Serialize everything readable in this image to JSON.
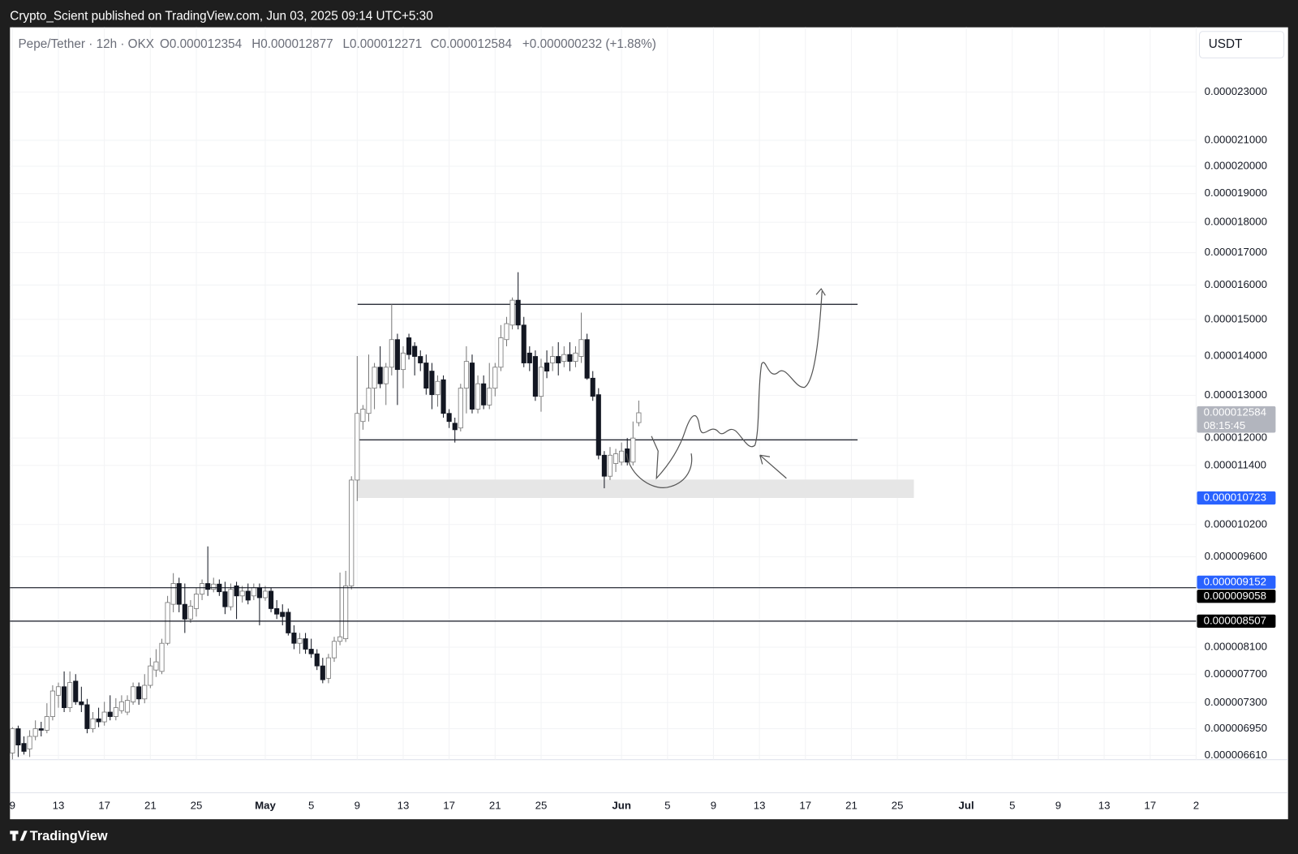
{
  "top_bar": {
    "text": "Crypto_Scient published on TradingView.com, Jun 03, 2025 09:14 UTC+5:30"
  },
  "footer": {
    "brand": "TradingView"
  },
  "currency_button": "USDT",
  "chart_data": {
    "type": "candlestick",
    "header": {
      "symbol": "Pepe/Tether · 12h · OKX",
      "open": "O0.000012354",
      "high": "H0.000012877",
      "low": "L0.000012271",
      "close": "C0.000012584",
      "change": "+0.000000232 (+1.88%)"
    },
    "log_scale": true,
    "grid": true,
    "up_color": "#ffffff",
    "down_color": "#131722",
    "ylim": [
      6.557e-06,
      2.597e-05
    ],
    "yticks": [
      {
        "value": 2.3e-05,
        "label": "0.000023000"
      },
      {
        "value": 2.1e-05,
        "label": "0.000021000"
      },
      {
        "value": 2e-05,
        "label": "0.000020000"
      },
      {
        "value": 1.9e-05,
        "label": "0.000019000"
      },
      {
        "value": 1.8e-05,
        "label": "0.000018000"
      },
      {
        "value": 1.7e-05,
        "label": "0.000017000"
      },
      {
        "value": 1.6e-05,
        "label": "0.000016000"
      },
      {
        "value": 1.5e-05,
        "label": "0.000015000"
      },
      {
        "value": 1.4e-05,
        "label": "0.000014000"
      },
      {
        "value": 1.3e-05,
        "label": "0.000013000"
      },
      {
        "value": 1.2e-05,
        "label": "0.000012000"
      },
      {
        "value": 1.14e-05,
        "label": "0.000011400"
      },
      {
        "value": 1.02e-05,
        "label": "0.000010200"
      },
      {
        "value": 9.6e-06,
        "label": "0.000009600"
      },
      {
        "value": 8.1e-06,
        "label": "0.000008100"
      },
      {
        "value": 7.7e-06,
        "label": "0.000007700"
      },
      {
        "value": 7.3e-06,
        "label": "0.000007300"
      },
      {
        "value": 6.95e-06,
        "label": "0.000006950"
      },
      {
        "value": 6.61e-06,
        "label": "0.000006610"
      }
    ],
    "xlim": [
      -0.43,
      206
    ],
    "xticks": [
      {
        "value": 0,
        "label": "9"
      },
      {
        "value": 8,
        "label": "13"
      },
      {
        "value": 16,
        "label": "17"
      },
      {
        "value": 24,
        "label": "21"
      },
      {
        "value": 32,
        "label": "25"
      },
      {
        "value": 44,
        "label": "May"
      },
      {
        "value": 52,
        "label": "5"
      },
      {
        "value": 60,
        "label": "9"
      },
      {
        "value": 68,
        "label": "13"
      },
      {
        "value": 76,
        "label": "17"
      },
      {
        "value": 84,
        "label": "21"
      },
      {
        "value": 92,
        "label": "25"
      },
      {
        "value": 106,
        "label": "Jun"
      },
      {
        "value": 114,
        "label": "5"
      },
      {
        "value": 122,
        "label": "9"
      },
      {
        "value": 130,
        "label": "13"
      },
      {
        "value": 138,
        "label": "17"
      },
      {
        "value": 146,
        "label": "21"
      },
      {
        "value": 154,
        "label": "25"
      },
      {
        "value": 166,
        "label": "Jul"
      },
      {
        "value": 174,
        "label": "5"
      },
      {
        "value": 182,
        "label": "9"
      },
      {
        "value": 190,
        "label": "13"
      },
      {
        "value": 198,
        "label": "17"
      },
      {
        "value": 206,
        "label": "2"
      }
    ],
    "open": [
      6.64e-06,
      6.95e-06,
      6.76e-06,
      6.69e-06,
      6.85e-06,
      6.95e-06,
      6.93e-06,
      7.11e-06,
      7.4e-06,
      7.52e-06,
      7.23e-06,
      7.6e-06,
      7.31e-06,
      7.27e-06,
      6.95e-06,
      7.08e-06,
      7.04e-06,
      7.17e-06,
      7.11e-06,
      7.19e-06,
      7.17e-06,
      7.31e-06,
      7.52e-06,
      7.35e-06,
      7.54e-06,
      7.76e-06,
      7.74e-06,
      8.16e-06,
      8.78e-06,
      9.13e-06,
      8.78e-06,
      8.54e-06,
      8.71e-06,
      8.95e-06,
      9.13e-06,
      9.03e-06,
      9.12e-06,
      8.99e-06,
      8.74e-06,
      9.09e-06,
      8.92e-06,
      9e-06,
      8.92e-06,
      9.06e-06,
      8.89e-06,
      9e-06,
      8.71e-06,
      8.65e-06,
      8.65e-06,
      8.32e-06,
      8.16e-06,
      8.23e-06,
      8.07e-06,
      8e-06,
      7.82e-06,
      7.64e-06,
      7.94e-06,
      8.19e-06,
      8.23e-06,
      9.09e-06,
      1.109e-05,
      1.238e-05,
      1.257e-05,
      1.318e-05,
      1.371e-05,
      1.329e-05,
      1.371e-05,
      1.444e-05,
      1.365e-05,
      1.449e-05,
      1.426e-05,
      1.399e-05,
      1.382e-05,
      1.361e-05,
      1.302e-05,
      1.339e-05,
      1.257e-05,
      1.234e-05,
      1.223e-05,
      1.318e-05,
      1.382e-05,
      1.267e-05,
      1.329e-05,
      1.277e-05,
      1.318e-05,
      1.371e-05,
      1.444e-05,
      1.484e-05,
      1.555e-05,
      1.484e-05,
      1.408e-05,
      1.399e-05,
      1.298e-05,
      1.382e-05,
      1.382e-05,
      1.399e-05,
      1.386e-05,
      1.404e-05,
      1.386e-05,
      1.399e-05,
      1.444e-05,
      1.343e-05,
      1.302e-05,
      1.162e-05,
      1.117e-05,
      1.144e-05,
      1.147e-05,
      1.176e-05,
      1.147e-05,
      1.2354e-05
    ],
    "high": [
      6.97e-06,
      6.99e-06,
      6.85e-06,
      6.93e-06,
      7.06e-06,
      7.04e-06,
      7.29e-06,
      7.54e-06,
      7.58e-06,
      7.74e-06,
      7.74e-06,
      7.7e-06,
      7.52e-06,
      7.35e-06,
      7.17e-06,
      7.23e-06,
      7.31e-06,
      7.4e-06,
      7.36e-06,
      7.4e-06,
      7.4e-06,
      7.58e-06,
      7.58e-06,
      7.7e-06,
      7.94e-06,
      8.07e-06,
      8.23e-06,
      8.92e-06,
      9.31e-06,
      9.23e-06,
      9.13e-06,
      8.85e-06,
      9.06e-06,
      9.2e-06,
      9.79e-06,
      9.23e-06,
      9.2e-06,
      9.16e-06,
      9.13e-06,
      9.16e-06,
      9.09e-06,
      9.13e-06,
      9.13e-06,
      9.13e-06,
      9.09e-06,
      9.06e-06,
      8.85e-06,
      8.78e-06,
      8.71e-06,
      8.44e-06,
      8.32e-06,
      8.32e-06,
      8.23e-06,
      8.07e-06,
      7.94e-06,
      8e-06,
      8.26e-06,
      9.32e-06,
      9.35e-06,
      1.117e-05,
      1.4e-05,
      1.277e-05,
      1.404e-05,
      1.382e-05,
      1.426e-05,
      1.382e-05,
      1.543e-05,
      1.46e-05,
      1.426e-05,
      1.46e-05,
      1.437e-05,
      1.415e-05,
      1.404e-05,
      1.382e-05,
      1.35e-05,
      1.35e-05,
      1.267e-05,
      1.247e-05,
      1.329e-05,
      1.426e-05,
      1.404e-05,
      1.35e-05,
      1.35e-05,
      1.382e-05,
      1.382e-05,
      1.484e-05,
      1.507e-05,
      1.563e-05,
      1.639e-05,
      1.507e-05,
      1.426e-05,
      1.415e-05,
      1.393e-05,
      1.415e-05,
      1.426e-05,
      1.437e-05,
      1.426e-05,
      1.437e-05,
      1.426e-05,
      1.519e-05,
      1.46e-05,
      1.361e-05,
      1.318e-05,
      1.171e-05,
      1.18e-05,
      1.176e-05,
      1.19e-05,
      1.2e-05,
      1.238e-05,
      1.2877e-05
    ],
    "low": [
      6.56e-06,
      6.59e-06,
      6.62e-06,
      6.59e-06,
      6.8e-06,
      6.85e-06,
      6.89e-06,
      7.06e-06,
      7.23e-06,
      7.17e-06,
      7.17e-06,
      7.27e-06,
      7.17e-06,
      6.89e-06,
      6.9e-06,
      6.97e-06,
      6.99e-06,
      7.06e-06,
      7.06e-06,
      7.15e-06,
      7.13e-06,
      7.27e-06,
      7.27e-06,
      7.29e-06,
      7.5e-06,
      7.66e-06,
      7.7e-06,
      8.13e-06,
      8.65e-06,
      8.65e-06,
      8.32e-06,
      8.48e-06,
      8.58e-06,
      8.85e-06,
      8.92e-06,
      8.98e-06,
      8.92e-06,
      8.62e-06,
      8.68e-06,
      8.54e-06,
      8.81e-06,
      8.78e-06,
      8.85e-06,
      8.44e-06,
      8.84e-06,
      8.65e-06,
      8.54e-06,
      8.44e-06,
      8.28e-06,
      8.07e-06,
      8e-06,
      8e-06,
      7.94e-06,
      7.76e-06,
      7.57e-06,
      7.57e-06,
      7.88e-06,
      8.13e-06,
      8.18e-06,
      9.03e-06,
      1.066e-05,
      1.219e-05,
      1.238e-05,
      1.267e-05,
      1.318e-05,
      1.277e-05,
      1.35e-05,
      1.277e-05,
      1.318e-05,
      1.391e-05,
      1.35e-05,
      1.361e-05,
      1.302e-05,
      1.267e-05,
      1.273e-05,
      1.247e-05,
      1.223e-05,
      1.19e-05,
      1.215e-05,
      1.257e-05,
      1.257e-05,
      1.257e-05,
      1.267e-05,
      1.267e-05,
      1.298e-05,
      1.361e-05,
      1.426e-05,
      1.472e-05,
      1.472e-05,
      1.371e-05,
      1.361e-05,
      1.287e-05,
      1.261e-05,
      1.343e-05,
      1.361e-05,
      1.35e-05,
      1.371e-05,
      1.361e-05,
      1.371e-05,
      1.382e-05,
      1.339e-05,
      1.287e-05,
      1.153e-05,
      1.092e-05,
      1.109e-05,
      1.126e-05,
      1.14e-05,
      1.14e-05,
      1.14e-05,
      1.2271e-05
    ],
    "close": [
      6.95e-06,
      6.74e-06,
      6.66e-06,
      6.85e-06,
      6.95e-06,
      6.93e-06,
      7.11e-06,
      7.46e-06,
      7.52e-06,
      7.23e-06,
      7.58e-06,
      7.31e-06,
      7.27e-06,
      6.95e-06,
      7.08e-06,
      7.04e-06,
      7.17e-06,
      7.11e-06,
      7.23e-06,
      7.31e-06,
      7.33e-06,
      7.52e-06,
      7.35e-06,
      7.54e-06,
      7.82e-06,
      7.88e-06,
      8.16e-06,
      8.81e-06,
      9.13e-06,
      8.78e-06,
      8.54e-06,
      8.75e-06,
      8.95e-06,
      9.13e-06,
      9.03e-06,
      9.12e-06,
      8.99e-06,
      8.74e-06,
      9.03e-06,
      8.92e-06,
      9e-06,
      8.85e-06,
      9.06e-06,
      8.89e-06,
      9e-06,
      8.71e-06,
      8.62e-06,
      8.58e-06,
      8.32e-06,
      8.16e-06,
      8.23e-06,
      8.07e-06,
      8e-06,
      7.82e-06,
      7.62e-06,
      7.94e-06,
      8.19e-06,
      8.26e-06,
      9.09e-06,
      1.109e-05,
      1.257e-05,
      1.267e-05,
      1.318e-05,
      1.371e-05,
      1.329e-05,
      1.371e-05,
      1.444e-05,
      1.365e-05,
      1.408e-05,
      1.404e-05,
      1.399e-05,
      1.382e-05,
      1.318e-05,
      1.302e-05,
      1.335e-05,
      1.257e-05,
      1.238e-05,
      1.219e-05,
      1.318e-05,
      1.386e-05,
      1.267e-05,
      1.329e-05,
      1.277e-05,
      1.318e-05,
      1.371e-05,
      1.449e-05,
      1.488e-05,
      1.555e-05,
      1.484e-05,
      1.382e-05,
      1.382e-05,
      1.298e-05,
      1.371e-05,
      1.361e-05,
      1.399e-05,
      1.382e-05,
      1.404e-05,
      1.386e-05,
      1.408e-05,
      1.444e-05,
      1.343e-05,
      1.298e-05,
      1.162e-05,
      1.117e-05,
      1.162e-05,
      1.165e-05,
      1.171e-05,
      1.147e-05,
      1.2e-05,
      1.2584e-05
    ],
    "levels": [
      1.543e-05,
      1.196e-05
    ],
    "zone": [
      1.0723e-05,
      1.11e-05
    ],
    "hlines": [
      9.058e-06,
      8.507e-06
    ],
    "last_price": {
      "value": 1.2584e-05,
      "countdown": "08:15:45",
      "color": "#b2b5be"
    },
    "price_labels": [
      {
        "value": 1.0723e-05,
        "color": "#2962ff"
      },
      {
        "value": 9.152e-06,
        "color": "#2962ff"
      },
      {
        "value": 9.058e-06,
        "color": "#000000"
      },
      {
        "value": 8.507e-06,
        "color": "#000000"
      }
    ]
  }
}
